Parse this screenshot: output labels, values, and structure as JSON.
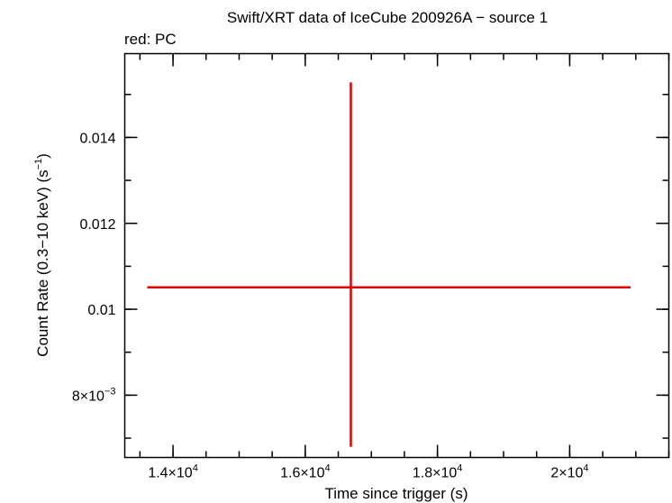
{
  "chart_data": {
    "type": "scatter",
    "title": "Swift/XRT data of IceCube 200926A − source 1",
    "subtitle": "red: PC",
    "xlabel": "Time since trigger (s)",
    "ylabel_main": "Count Rate (0.3−10 keV) (s",
    "ylabel_sup": "−1",
    "ylabel_close": ")",
    "xlim": [
      13270,
      21500
    ],
    "ylim": [
      0.00655,
      0.01595
    ],
    "x_ticks": [
      {
        "value": 14000,
        "mant": "1.4×10",
        "exp": "4"
      },
      {
        "value": 16000,
        "mant": "1.6×10",
        "exp": "4"
      },
      {
        "value": 18000,
        "mant": "1.8×10",
        "exp": "4"
      },
      {
        "value": 20000,
        "mant": "2×10",
        "exp": "4"
      }
    ],
    "x_minor_step": 500,
    "y_ticks": [
      {
        "value": 0.008,
        "mant": "8×10",
        "exp": "−3"
      },
      {
        "value": 0.01,
        "mant": "0.01",
        "exp": ""
      },
      {
        "value": 0.012,
        "mant": "0.012",
        "exp": ""
      },
      {
        "value": 0.014,
        "mant": "0.014",
        "exp": ""
      }
    ],
    "y_minor_step": 0.001,
    "series": [
      {
        "color": "#e00000",
        "points": [
          {
            "x": 16690,
            "xerr_low": 13610,
            "xerr_high": 20920,
            "y": 0.01051,
            "yerr_low": 0.0068,
            "yerr_high": 0.01528
          }
        ]
      }
    ]
  }
}
